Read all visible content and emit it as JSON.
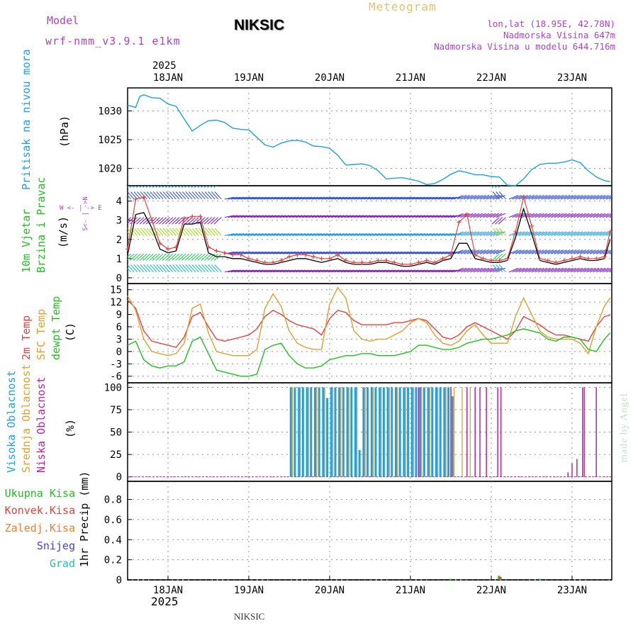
{
  "header": {
    "model_label": "Model",
    "model_name": "wrf-nmm_v3.9.1 e1km",
    "station": "NIKSIC",
    "meteogram_label": "Meteogram",
    "location": "lon,lat (18.95E, 42.78N)",
    "altitude": "Nadmorska Visina 647m",
    "model_altitude": "Nadmorska Visina u modelu 644.716m"
  },
  "footer": {
    "station": "NIKSIC",
    "credit": "made by Angel"
  },
  "colors": {
    "pressure": "#1ea0e8",
    "wind_speed": "#000000",
    "wind_gust": "#e84040",
    "t2m": "#e84040",
    "tsfc": "#e0a030",
    "tdew": "#20c020",
    "high_cloud": "#20a0e0",
    "mid_cloud": "#e0a030",
    "low_cloud": "#c020a0",
    "total_precip": "#20c020",
    "conv_precip": "#e84040",
    "frz_precip": "#f08030",
    "snow": "#4040e0",
    "hail": "#20c0c0"
  },
  "time_axis": {
    "year": "2025",
    "ticks": [
      "18JAN",
      "19JAN",
      "20JAN",
      "21JAN",
      "22JAN",
      "23JAN"
    ]
  },
  "panels": {
    "pressure": {
      "label": "Pritisak na nivou mora",
      "unit": "(hPa)",
      "ticks": [
        "1020",
        "1025",
        "1030"
      ]
    },
    "wind": {
      "label1": "10m Vjetar",
      "label2": "Brzina i Pravac",
      "unit": "(m/s)",
      "ticks": [
        "0",
        "1",
        "2",
        "3",
        "4"
      ],
      "compass_we": "W  <- | ->  E",
      "compass_ns": "S<- | ->N"
    },
    "temp": {
      "label1": "2m Temp",
      "label2": "SFC Temp",
      "label3": "dewpt Temp",
      "unit": "(C)",
      "ticks": [
        "-6",
        "-3",
        "0",
        "3",
        "6",
        "9",
        "12",
        "15"
      ]
    },
    "cloud": {
      "label1": "Visoka Oblacnost",
      "label2": "Srednja Oblacnost",
      "label3": "Niska Oblacnost",
      "unit": "(%)",
      "ticks": [
        "0",
        "25",
        "50",
        "75",
        "100"
      ]
    },
    "precip": {
      "label1": "Ukupna Kisa",
      "label2": "Konvek.Kisa",
      "label3": "Zaledj.Kisa",
      "label4": "Snijeg",
      "label5": "Grad",
      "unit": "1hr Precip (mm)",
      "ticks": [
        "0",
        "0.2",
        "0.4",
        "0.6",
        "0.8"
      ]
    }
  },
  "chart_data": [
    {
      "type": "line",
      "title": "Pritisak na nivou mora",
      "ylabel": "(hPa)",
      "ylim": [
        1017,
        1034
      ],
      "x_days": [
        0.0,
        0.1,
        0.15,
        0.2,
        0.3,
        0.4,
        0.5,
        0.6,
        0.7,
        0.8,
        0.9,
        1.0,
        1.1,
        1.2,
        1.3,
        1.4,
        1.5,
        1.6,
        1.7,
        1.8,
        1.9,
        2.0,
        2.1,
        2.2,
        2.3,
        2.4,
        2.5,
        2.6,
        2.7,
        2.8,
        2.9,
        3.0,
        3.1,
        3.2,
        3.3,
        3.4,
        3.5,
        3.6,
        3.7,
        3.8,
        3.9,
        4.0,
        4.1,
        4.2,
        4.3,
        4.4,
        4.5,
        4.6,
        4.7,
        4.8,
        4.9,
        5.0,
        5.1,
        5.2,
        5.3,
        5.4,
        5.5,
        5.6,
        5.7,
        5.8,
        5.9,
        5.97
      ],
      "series": [
        {
          "values": [
            1031,
            1030.6,
            1032.5,
            1032.8,
            1032.3,
            1032.2,
            1031.2,
            1030.8,
            1028.6,
            1026.5,
            1027.5,
            1028.3,
            1028.4,
            1028.0,
            1027.0,
            1026.8,
            1026.7,
            1025.4,
            1024.1,
            1023.7,
            1024.4,
            1024.8,
            1024.9,
            1024.6,
            1023.9,
            1023.8,
            1023.5,
            1022.3,
            1020.6,
            1020.7,
            1020.8,
            1020.5,
            1019.6,
            1018.2,
            1018.3,
            1018.4,
            1018.1,
            1017.8,
            1017.2,
            1017.4,
            1018.1,
            1019.0,
            1019.6,
            1019.3,
            1018.9,
            1018.9,
            1018.6,
            1018.5,
            1017.1,
            1017.0,
            1018.2,
            1019.8,
            1020.7,
            1020.9,
            1020.9,
            1021.1,
            1021.5,
            1021.0,
            1019.6,
            1018.5,
            1017.9,
            1017.7
          ]
        }
      ]
    },
    {
      "type": "line",
      "title": "10m Vjetar Brzina i Pravac",
      "ylabel": "(m/s)",
      "ylim": [
        -0.3,
        4.8
      ],
      "x_days": [
        0.0,
        0.1,
        0.2,
        0.3,
        0.4,
        0.5,
        0.6,
        0.7,
        0.8,
        0.9,
        1.0,
        1.1,
        1.2,
        1.3,
        1.4,
        1.5,
        1.6,
        1.7,
        1.8,
        1.9,
        2.0,
        2.1,
        2.2,
        2.3,
        2.4,
        2.5,
        2.6,
        2.7,
        2.8,
        2.9,
        3.0,
        3.1,
        3.2,
        3.3,
        3.4,
        3.5,
        3.6,
        3.7,
        3.8,
        3.9,
        4.0,
        4.1,
        4.2,
        4.3,
        4.4,
        4.5,
        4.6,
        4.7,
        4.8,
        4.9,
        5.0,
        5.1,
        5.2,
        5.3,
        5.4,
        5.5,
        5.6,
        5.7,
        5.8,
        5.9,
        5.97
      ],
      "series": [
        {
          "values": [
            1.2,
            3.3,
            3.4,
            2.6,
            1.5,
            1.3,
            1.4,
            2.8,
            2.8,
            2.9,
            1.3,
            1.1,
            1.1,
            1.0,
            1.0,
            0.9,
            0.8,
            0.7,
            0.7,
            0.8,
            0.9,
            1.0,
            1.0,
            0.9,
            0.8,
            0.9,
            1.0,
            0.8,
            0.7,
            0.7,
            0.7,
            0.8,
            0.8,
            0.7,
            0.6,
            0.6,
            0.7,
            0.8,
            0.7,
            0.9,
            1.0,
            1.8,
            1.8,
            1.0,
            0.9,
            0.8,
            0.8,
            0.9,
            2.1,
            3.6,
            2.3,
            0.9,
            0.8,
            0.7,
            0.8,
            0.9,
            1.0,
            0.9,
            0.9,
            1.0,
            2.0
          ]
        },
        {
          "values": [
            1.5,
            4.1,
            4.2,
            3.0,
            1.8,
            1.5,
            1.6,
            3.1,
            3.2,
            3.2,
            1.6,
            1.4,
            1.3,
            1.2,
            1.2,
            1.0,
            0.9,
            0.8,
            0.8,
            0.9,
            1.1,
            1.2,
            1.2,
            1.1,
            1.0,
            1.0,
            1.2,
            0.9,
            0.8,
            0.8,
            0.8,
            0.9,
            0.9,
            0.8,
            0.7,
            0.7,
            0.8,
            0.9,
            0.8,
            1.0,
            1.2,
            2.9,
            3.3,
            1.2,
            1.0,
            0.9,
            0.9,
            1.0,
            2.4,
            4.2,
            2.7,
            1.0,
            0.9,
            0.8,
            0.9,
            1.0,
            1.1,
            1.0,
            1.0,
            1.1,
            2.4
          ]
        }
      ]
    },
    {
      "type": "line",
      "title": "2m Temp / SFC Temp / dewpt Temp",
      "ylabel": "(C)",
      "ylim": [
        -7.6,
        16.5
      ],
      "x_days": [
        0.0,
        0.1,
        0.2,
        0.3,
        0.4,
        0.5,
        0.6,
        0.7,
        0.8,
        0.9,
        1.0,
        1.1,
        1.2,
        1.3,
        1.4,
        1.5,
        1.6,
        1.7,
        1.8,
        1.9,
        2.0,
        2.1,
        2.2,
        2.3,
        2.4,
        2.5,
        2.6,
        2.7,
        2.8,
        2.9,
        3.0,
        3.1,
        3.2,
        3.3,
        3.4,
        3.5,
        3.6,
        3.7,
        3.8,
        3.9,
        4.0,
        4.1,
        4.2,
        4.3,
        4.4,
        4.5,
        4.6,
        4.7,
        4.8,
        4.9,
        5.0,
        5.1,
        5.2,
        5.3,
        5.4,
        5.5,
        5.6,
        5.7,
        5.8,
        5.9,
        5.97
      ],
      "series": [
        {
          "values": [
            12.5,
            10.5,
            5.0,
            2.5,
            2.0,
            1.5,
            1.0,
            3.5,
            8.5,
            9.5,
            6.0,
            3.0,
            2.5,
            3.0,
            3.5,
            4.0,
            5.5,
            8.5,
            10.0,
            9.0,
            7.5,
            6.5,
            6.0,
            5.5,
            4.0,
            8.0,
            10.0,
            9.5,
            7.5,
            6.5,
            6.5,
            6.5,
            6.5,
            7.0,
            7.0,
            7.5,
            8.0,
            7.5,
            5.5,
            3.5,
            3.0,
            4.0,
            6.0,
            7.0,
            6.0,
            5.0,
            4.0,
            3.0,
            5.0,
            8.5,
            7.5,
            6.5,
            5.0,
            4.0,
            4.0,
            3.5,
            3.0,
            2.5,
            6.0,
            8.5,
            8.8
          ]
        },
        {
          "values": [
            13.5,
            10.0,
            3.0,
            0.0,
            -0.5,
            -1.0,
            -0.5,
            2.0,
            10.5,
            11.5,
            4.5,
            0.0,
            -0.5,
            -1.0,
            -1.0,
            -1.0,
            0.5,
            10.5,
            14.0,
            11.0,
            5.0,
            2.0,
            1.0,
            0.5,
            0.5,
            11.5,
            15.5,
            13.0,
            5.0,
            3.0,
            2.5,
            3.0,
            3.0,
            4.0,
            5.0,
            7.0,
            8.0,
            7.0,
            4.0,
            2.0,
            1.5,
            2.5,
            5.0,
            6.5,
            4.0,
            2.0,
            2.0,
            2.0,
            8.5,
            13.0,
            9.0,
            5.0,
            3.5,
            3.0,
            3.0,
            3.0,
            2.0,
            -0.5,
            6.0,
            11.0,
            13.0
          ]
        },
        {
          "values": [
            1.5,
            2.5,
            -2.0,
            -3.5,
            -4.0,
            -3.5,
            -3.5,
            -2.5,
            2.5,
            3.5,
            -0.5,
            -4.5,
            -5.0,
            -5.5,
            -6.0,
            -6.0,
            -5.5,
            0.5,
            1.5,
            2.0,
            -1.0,
            -3.0,
            -4.0,
            -4.0,
            -3.5,
            -2.0,
            -1.5,
            -1.0,
            -1.0,
            -0.5,
            -0.5,
            -1.0,
            -1.0,
            -1.0,
            -0.5,
            0.0,
            1.5,
            1.5,
            1.0,
            0.5,
            0.5,
            1.0,
            2.0,
            2.5,
            3.0,
            3.0,
            3.5,
            4.0,
            5.0,
            5.5,
            5.0,
            4.5,
            3.0,
            2.5,
            3.5,
            3.5,
            3.0,
            0.5,
            0.0,
            3.0,
            4.5
          ]
        }
      ]
    },
    {
      "type": "bar",
      "title": "Visoka / Srednja / Niska Oblacnost",
      "ylabel": "(%)",
      "ylim": [
        -5,
        105
      ],
      "series": [
        {
          "name": "Visoka Oblacnost",
          "x_days": [
            2.02,
            2.07,
            2.12,
            2.17,
            2.22,
            2.27,
            2.32,
            2.37,
            2.42,
            2.47,
            2.52,
            2.57,
            2.62,
            2.67,
            2.72,
            2.77,
            2.82,
            2.87,
            2.92,
            2.97,
            3.02,
            3.07,
            3.12,
            3.17,
            3.22,
            3.27,
            3.32,
            3.37,
            3.42,
            3.47,
            3.52,
            3.57,
            3.62,
            3.67,
            3.72,
            3.77,
            3.82,
            3.87,
            3.92,
            3.97,
            4.02
          ],
          "values": [
            100,
            100,
            100,
            100,
            100,
            100,
            100,
            100,
            100,
            88,
            100,
            100,
            100,
            100,
            100,
            100,
            100,
            30,
            100,
            100,
            100,
            100,
            100,
            100,
            100,
            100,
            100,
            100,
            100,
            100,
            100,
            100,
            100,
            100,
            100,
            100,
            100,
            100,
            100,
            100,
            90
          ]
        },
        {
          "name": "Srednja Oblacnost",
          "x_days": [
            2.04,
            2.14,
            2.24,
            2.34,
            2.44,
            2.54,
            2.64,
            2.74,
            2.84,
            2.94,
            3.04,
            3.14,
            3.24,
            3.34,
            3.44,
            3.54,
            3.64,
            3.74,
            3.84,
            3.94,
            4.04,
            4.14,
            4.24
          ],
          "values": [
            100,
            100,
            100,
            100,
            100,
            100,
            100,
            100,
            100,
            100,
            100,
            100,
            100,
            100,
            100,
            100,
            100,
            100,
            100,
            100,
            100,
            100,
            100
          ]
        },
        {
          "name": "Niska Oblacnost",
          "x_days": [
            3.6,
            4.0,
            4.2,
            4.3,
            4.36,
            4.44,
            4.58,
            4.62,
            5.45,
            5.5,
            5.56,
            5.63,
            5.65,
            5.8
          ],
          "values": [
            100,
            100,
            100,
            100,
            100,
            100,
            100,
            100,
            5,
            15,
            20,
            100,
            100,
            100
          ]
        }
      ]
    },
    {
      "type": "bar",
      "title": "1hr Precip",
      "ylabel": "(mm)",
      "ylim": [
        0,
        0.98
      ],
      "series": [
        {
          "name": "Ukupna Kisa",
          "x_days": [
            4.0,
            4.6,
            4.62,
            5.1
          ],
          "values": [
            0.01,
            0.04,
            0.03,
            0.01
          ]
        },
        {
          "name": "Konvek.Kisa",
          "x_days": [
            4.61
          ],
          "values": [
            0.03
          ]
        }
      ]
    }
  ]
}
